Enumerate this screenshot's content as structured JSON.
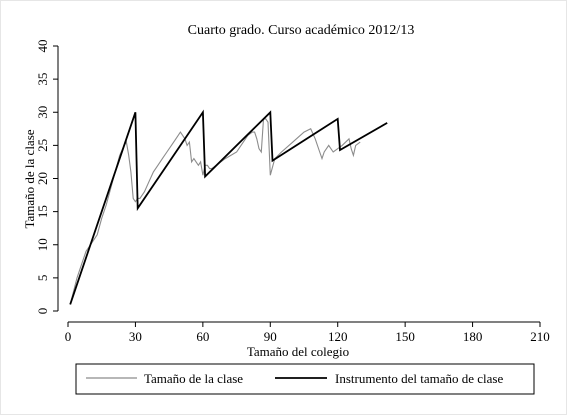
{
  "chart_data": {
    "type": "line",
    "title": "Cuarto grado. Curso académico 2012/13",
    "xlabel": "Tamaño del colegio",
    "ylabel": "Tamaño de la clase",
    "xlim": [
      0,
      210
    ],
    "ylim": [
      0,
      40
    ],
    "xticks": [
      0,
      30,
      60,
      90,
      120,
      150,
      180,
      210
    ],
    "yticks": [
      0,
      5,
      10,
      15,
      20,
      25,
      30,
      35,
      40
    ],
    "grid": false,
    "legend_position": "bottom",
    "series": [
      {
        "name": "Tamaño de la clase",
        "color": "#8c8c8c",
        "x": [
          1,
          4,
          6,
          8,
          10,
          12,
          13,
          15,
          17,
          19,
          21,
          23,
          25,
          26,
          27,
          28,
          29,
          30,
          31,
          32,
          34,
          36,
          38,
          40,
          42,
          44,
          46,
          48,
          50,
          52,
          53,
          54,
          55,
          56,
          57,
          58,
          59,
          60,
          61,
          62,
          63,
          64,
          66,
          70,
          75,
          80,
          82,
          83,
          84,
          85,
          86,
          87,
          88,
          89,
          90,
          92,
          95,
          100,
          105,
          108,
          110,
          112,
          113,
          114,
          116,
          118,
          120,
          122,
          125,
          126,
          127,
          128,
          130
        ],
        "y": [
          1,
          5,
          7,
          9,
          10,
          11,
          11.5,
          14,
          16,
          18.5,
          21,
          23.5,
          25,
          25.5,
          23.5,
          21,
          17,
          16.5,
          17,
          17,
          18,
          19.5,
          21,
          22,
          23,
          24,
          25,
          26,
          27,
          26,
          25,
          25.5,
          22.5,
          23,
          22.5,
          22,
          22.5,
          20.5,
          22,
          22,
          21.5,
          21.5,
          22,
          23,
          24,
          26.5,
          27,
          27,
          26,
          24.5,
          24,
          29,
          29,
          28.5,
          20.5,
          23,
          24,
          25.5,
          27,
          27.5,
          26,
          24,
          23,
          24,
          25,
          24,
          24.5,
          25,
          26,
          24.5,
          23.5,
          25,
          25.5
        ]
      },
      {
        "name": "Instrumento del tamaño de clase",
        "color": "#000000",
        "x": [
          1,
          30,
          31,
          60,
          61,
          90,
          91,
          120,
          121,
          142
        ],
        "y": [
          1,
          30,
          15.5,
          30,
          20.3,
          30,
          22.7,
          29,
          24.3,
          28.4
        ]
      }
    ]
  }
}
